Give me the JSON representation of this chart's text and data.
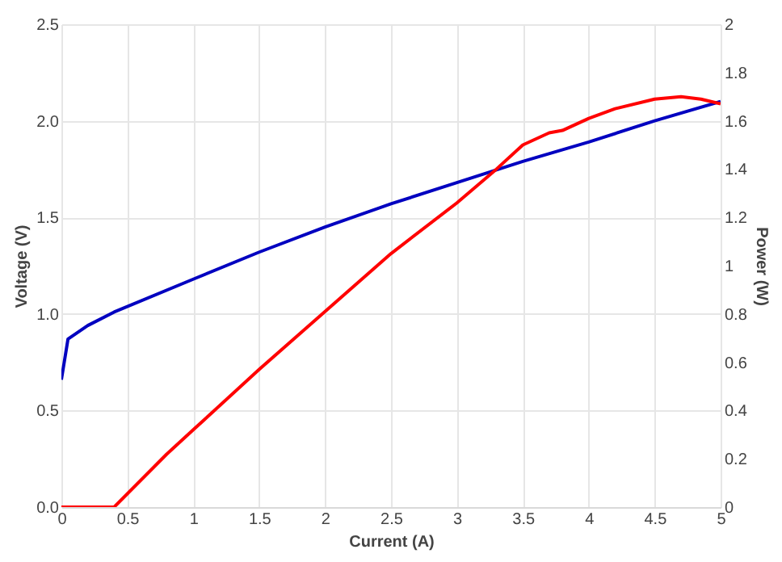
{
  "chart_data": {
    "type": "line",
    "xlabel": "Current (A)",
    "ylabel": "Voltage (V)",
    "y2label": "Power (W)",
    "xlim": [
      0,
      5
    ],
    "xticks": [
      0,
      0.5,
      1,
      1.5,
      2,
      2.5,
      3,
      3.5,
      4,
      4.5,
      5
    ],
    "ylim": [
      0,
      2.5
    ],
    "yticks": [
      {
        "value": 0,
        "label": "0.0"
      },
      {
        "value": 0.5,
        "label": "0.5"
      },
      {
        "value": 1,
        "label": "1.0"
      },
      {
        "value": 1.5,
        "label": "1.5"
      },
      {
        "value": 2,
        "label": "2.0"
      },
      {
        "value": 2.5,
        "label": "2.5"
      }
    ],
    "y2lim": [
      0,
      2
    ],
    "y2ticks": [
      0,
      0.2,
      0.4,
      0.6,
      0.8,
      1,
      1.2,
      1.4,
      1.6,
      1.8,
      2
    ],
    "grid": true,
    "series": [
      {
        "color": "#0000c0",
        "x": [
          0,
          0.05,
          0.2,
          0.4,
          1,
          1.5,
          2,
          2.5,
          3,
          3.5,
          4,
          4.5,
          5
        ],
        "values": [
          0.66,
          0.87,
          0.94,
          1.01,
          1.18,
          1.32,
          1.45,
          1.57,
          1.68,
          1.79,
          1.89,
          2.0,
          2.1
        ]
      },
      {
        "color": "#ff0000",
        "axis": "y2",
        "x": [
          0,
          0.4,
          0.8,
          1,
          1.5,
          2,
          2.5,
          3,
          3.3,
          3.5,
          3.7,
          3.8,
          4,
          4.2,
          4.5,
          4.7,
          4.85,
          5
        ],
        "values": [
          0,
          0,
          0.22,
          0.32,
          0.57,
          0.81,
          1.05,
          1.26,
          1.4,
          1.5,
          1.55,
          1.56,
          1.61,
          1.65,
          1.69,
          1.7,
          1.69,
          1.67
        ]
      }
    ]
  }
}
